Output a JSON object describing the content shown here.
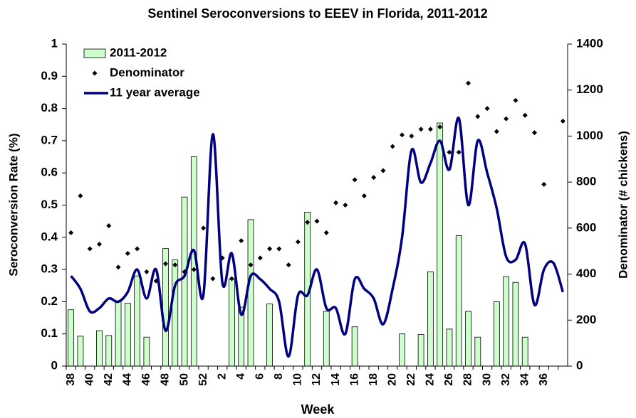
{
  "chart_data": {
    "type": "bar",
    "title": "Sentinel Seroconversions to EEEV in Florida, 2011-2012",
    "x_label": "Week",
    "y_label": "Seroconversion Rate (%)",
    "y2_label": "Denominator (# chickens)",
    "categories": [
      "38",
      null,
      "40",
      null,
      "42",
      null,
      "44",
      null,
      "46",
      null,
      "48",
      null,
      "50",
      null,
      "52",
      null,
      "2",
      null,
      "4",
      null,
      "6",
      null,
      "8",
      null,
      "10",
      null,
      "12",
      null,
      "14",
      null,
      "16",
      null,
      "18",
      null,
      "20",
      null,
      "22",
      null,
      "24",
      null,
      "26",
      null,
      "28",
      null,
      "30",
      null,
      "32",
      null,
      "34",
      null,
      "36",
      null,
      null
    ],
    "series": [
      {
        "name": "2011-2012",
        "type": "bar",
        "color": "#ccffcc",
        "values": [
          0.175,
          0.093,
          0,
          0.11,
          0.095,
          0.2,
          0.195,
          0.28,
          0.09,
          0,
          0.365,
          0.33,
          0.525,
          0.65,
          0,
          0,
          0,
          0.27,
          0.183,
          0.455,
          0,
          0.193,
          0,
          0,
          0,
          0.478,
          0,
          0.17,
          0,
          0,
          0.122,
          0,
          0,
          0,
          0,
          0.1,
          0,
          0.098,
          0.293,
          0.755,
          0.115,
          0.405,
          0.17,
          0.09,
          0,
          0.2,
          0.278,
          0.26,
          0.09,
          0,
          0,
          0,
          0
        ]
      },
      {
        "name": "Denominator",
        "type": "scatter",
        "axis": "y2",
        "color": "#000000",
        "values": [
          580,
          740,
          510,
          530,
          610,
          430,
          490,
          510,
          410,
          370,
          445,
          440,
          410,
          420,
          600,
          380,
          470,
          380,
          545,
          440,
          470,
          510,
          510,
          440,
          540,
          625,
          630,
          580,
          710,
          700,
          810,
          740,
          820,
          850,
          955,
          1005,
          1000,
          1030,
          1030,
          1040,
          930,
          930,
          1230,
          1085,
          1120,
          1020,
          1075,
          1155,
          1090,
          1015,
          790,
          null,
          1065
        ]
      },
      {
        "name": "11 year average",
        "type": "line",
        "color": "#000080",
        "values": [
          0.28,
          0.24,
          0.17,
          0.18,
          0.21,
          0.2,
          0.23,
          0.3,
          0.21,
          0.3,
          0.11,
          0.25,
          0.28,
          0.36,
          0.22,
          0.72,
          0.26,
          0.35,
          0.16,
          0.28,
          0.27,
          0.24,
          0.2,
          0.03,
          0.22,
          0.22,
          0.3,
          0.18,
          0.18,
          0.1,
          0.27,
          0.24,
          0.21,
          0.13,
          0.24,
          0.4,
          0.67,
          0.57,
          0.63,
          0.7,
          0.61,
          0.77,
          0.5,
          0.7,
          0.6,
          0.49,
          0.34,
          0.33,
          0.38,
          0.19,
          0.3,
          0.32,
          0.23
        ]
      }
    ],
    "ylim": [
      0,
      1
    ],
    "yticks": [
      0,
      0.1,
      0.2,
      0.3,
      0.4,
      0.5,
      0.6,
      0.7,
      0.8,
      0.9,
      1
    ],
    "y2lim": [
      0,
      1400
    ],
    "y2ticks": [
      0,
      200,
      400,
      600,
      800,
      1000,
      1200,
      1400
    ],
    "legend": "upper left",
    "grid": false
  }
}
